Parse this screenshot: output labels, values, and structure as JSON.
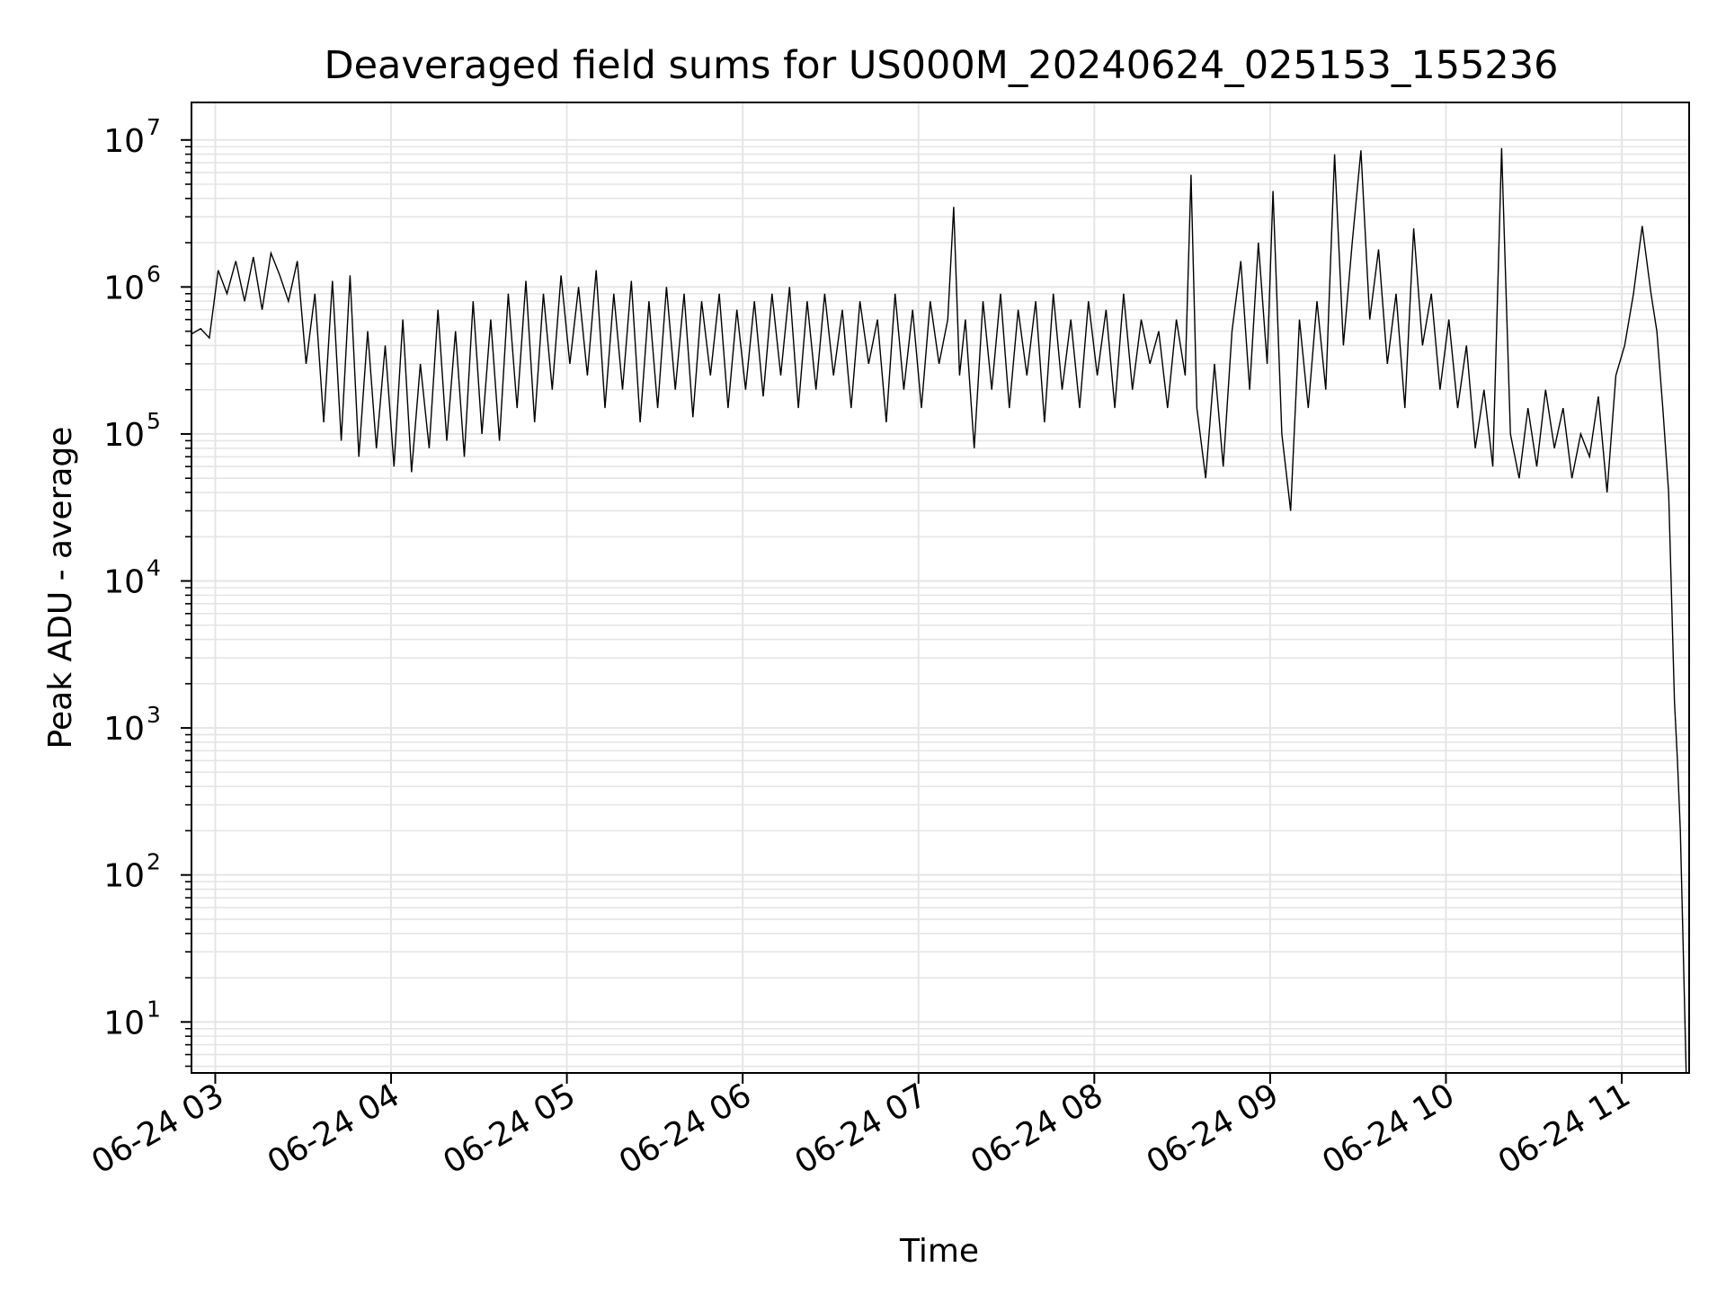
{
  "chart_data": {
    "type": "line",
    "title": "Deaveraged field sums for US000M_20240624_025153_155236",
    "xlabel": "Time",
    "ylabel": "Peak ADU - average",
    "yscale": "log",
    "xlim": [
      "06-24 02:51:53",
      "06-24 11:23:00"
    ],
    "ylim": [
      4.5,
      18000000
    ],
    "grid": true,
    "line_color": "#000000",
    "grid_color": "#e5e5e5",
    "x_ticks": [
      {
        "value": "06-24 03:00",
        "label": "06-24 03"
      },
      {
        "value": "06-24 04:00",
        "label": "06-24 04"
      },
      {
        "value": "06-24 05:00",
        "label": "06-24 05"
      },
      {
        "value": "06-24 06:00",
        "label": "06-24 06"
      },
      {
        "value": "06-24 07:00",
        "label": "06-24 07"
      },
      {
        "value": "06-24 08:00",
        "label": "06-24 08"
      },
      {
        "value": "06-24 09:00",
        "label": "06-24 09"
      },
      {
        "value": "06-24 10:00",
        "label": "06-24 10"
      },
      {
        "value": "06-24 11:00",
        "label": "06-24 11"
      }
    ],
    "y_ticks": [
      {
        "value": 10,
        "base": "10",
        "exp": "1"
      },
      {
        "value": 100,
        "base": "10",
        "exp": "2"
      },
      {
        "value": 1000,
        "base": "10",
        "exp": "3"
      },
      {
        "value": 10000,
        "base": "10",
        "exp": "4"
      },
      {
        "value": 100000,
        "base": "10",
        "exp": "5"
      },
      {
        "value": 1000000,
        "base": "10",
        "exp": "6"
      },
      {
        "value": 10000000,
        "base": "10",
        "exp": "7"
      }
    ],
    "series": [
      {
        "x": [
          "06-24 02:52",
          "06-24 02:55",
          "06-24 02:58",
          "06-24 03:01",
          "06-24 03:04",
          "06-24 03:07",
          "06-24 03:10",
          "06-24 03:13",
          "06-24 03:16",
          "06-24 03:19",
          "06-24 03:22",
          "06-24 03:25",
          "06-24 03:28",
          "06-24 03:31",
          "06-24 03:34",
          "06-24 03:37",
          "06-24 03:40",
          "06-24 03:43",
          "06-24 03:46",
          "06-24 03:49",
          "06-24 03:52",
          "06-24 03:55",
          "06-24 03:58",
          "06-24 04:01",
          "06-24 04:04",
          "06-24 04:07",
          "06-24 04:10",
          "06-24 04:13",
          "06-24 04:16",
          "06-24 04:19",
          "06-24 04:22",
          "06-24 04:25",
          "06-24 04:28",
          "06-24 04:31",
          "06-24 04:34",
          "06-24 04:37",
          "06-24 04:40",
          "06-24 04:43",
          "06-24 04:46",
          "06-24 04:49",
          "06-24 04:52",
          "06-24 04:55",
          "06-24 04:58",
          "06-24 05:01",
          "06-24 05:04",
          "06-24 05:07",
          "06-24 05:10",
          "06-24 05:13",
          "06-24 05:16",
          "06-24 05:19",
          "06-24 05:22",
          "06-24 05:25",
          "06-24 05:28",
          "06-24 05:31",
          "06-24 05:34",
          "06-24 05:37",
          "06-24 05:40",
          "06-24 05:43",
          "06-24 05:46",
          "06-24 05:49",
          "06-24 05:52",
          "06-24 05:55",
          "06-24 05:58",
          "06-24 06:01",
          "06-24 06:04",
          "06-24 06:07",
          "06-24 06:10",
          "06-24 06:13",
          "06-24 06:16",
          "06-24 06:19",
          "06-24 06:22",
          "06-24 06:25",
          "06-24 06:28",
          "06-24 06:31",
          "06-24 06:34",
          "06-24 06:37",
          "06-24 06:40",
          "06-24 06:43",
          "06-24 06:46",
          "06-24 06:49",
          "06-24 06:52",
          "06-24 06:55",
          "06-24 06:58",
          "06-24 07:01",
          "06-24 07:04",
          "06-24 07:07",
          "06-24 07:10",
          "06-24 07:12",
          "06-24 07:14",
          "06-24 07:16",
          "06-24 07:19",
          "06-24 07:22",
          "06-24 07:25",
          "06-24 07:28",
          "06-24 07:31",
          "06-24 07:34",
          "06-24 07:37",
          "06-24 07:40",
          "06-24 07:43",
          "06-24 07:46",
          "06-24 07:49",
          "06-24 07:52",
          "06-24 07:55",
          "06-24 07:58",
          "06-24 08:01",
          "06-24 08:04",
          "06-24 08:07",
          "06-24 08:10",
          "06-24 08:13",
          "06-24 08:16",
          "06-24 08:19",
          "06-24 08:22",
          "06-24 08:25",
          "06-24 08:28",
          "06-24 08:31",
          "06-24 08:33",
          "06-24 08:35",
          "06-24 08:38",
          "06-24 08:41",
          "06-24 08:44",
          "06-24 08:47",
          "06-24 08:50",
          "06-24 08:53",
          "06-24 08:56",
          "06-24 08:59",
          "06-24 09:01",
          "06-24 09:04",
          "06-24 09:07",
          "06-24 09:10",
          "06-24 09:13",
          "06-24 09:16",
          "06-24 09:19",
          "06-24 09:22",
          "06-24 09:25",
          "06-24 09:28",
          "06-24 09:31",
          "06-24 09:34",
          "06-24 09:37",
          "06-24 09:40",
          "06-24 09:43",
          "06-24 09:46",
          "06-24 09:49",
          "06-24 09:52",
          "06-24 09:55",
          "06-24 09:58",
          "06-24 10:01",
          "06-24 10:04",
          "06-24 10:07",
          "06-24 10:10",
          "06-24 10:13",
          "06-24 10:16",
          "06-24 10:19",
          "06-24 10:22",
          "06-24 10:25",
          "06-24 10:28",
          "06-24 10:31",
          "06-24 10:34",
          "06-24 10:37",
          "06-24 10:40",
          "06-24 10:43",
          "06-24 10:46",
          "06-24 10:49",
          "06-24 10:52",
          "06-24 10:55",
          "06-24 10:58",
          "06-24 11:01",
          "06-24 11:04",
          "06-24 11:07",
          "06-24 11:10",
          "06-24 11:12",
          "06-24 11:14",
          "06-24 11:16",
          "06-24 11:18",
          "06-24 11:19",
          "06-24 11:20",
          "06-24 11:21",
          "06-24 11:22"
        ],
        "values": [
          480000,
          520000,
          450000,
          1300000,
          900000,
          1500000,
          800000,
          1600000,
          700000,
          1700000,
          1200000,
          800000,
          1500000,
          300000,
          900000,
          120000,
          1100000,
          90000,
          1200000,
          70000,
          500000,
          80000,
          400000,
          60000,
          600000,
          55000,
          300000,
          80000,
          700000,
          90000,
          500000,
          70000,
          800000,
          100000,
          600000,
          90000,
          900000,
          150000,
          1100000,
          120000,
          900000,
          200000,
          1200000,
          300000,
          1000000,
          250000,
          1300000,
          150000,
          900000,
          200000,
          1100000,
          120000,
          800000,
          150000,
          1000000,
          200000,
          900000,
          130000,
          800000,
          250000,
          900000,
          150000,
          700000,
          200000,
          800000,
          180000,
          900000,
          250000,
          1000000,
          150000,
          800000,
          200000,
          900000,
          250000,
          700000,
          150000,
          800000,
          300000,
          600000,
          120000,
          900000,
          200000,
          700000,
          150000,
          800000,
          300000,
          600000,
          3500000,
          250000,
          600000,
          80000,
          800000,
          200000,
          900000,
          150000,
          700000,
          250000,
          800000,
          120000,
          900000,
          200000,
          600000,
          150000,
          800000,
          250000,
          700000,
          150000,
          900000,
          200000,
          600000,
          300000,
          500000,
          150000,
          600000,
          250000,
          5800000,
          150000,
          50000,
          300000,
          60000,
          500000,
          1500000,
          200000,
          2000000,
          300000,
          4500000,
          100000,
          30000,
          600000,
          150000,
          800000,
          200000,
          8000000,
          400000,
          2000000,
          8500000,
          600000,
          1800000,
          300000,
          900000,
          150000,
          2500000,
          400000,
          900000,
          200000,
          600000,
          150000,
          400000,
          80000,
          200000,
          60000,
          8800000,
          100000,
          50000,
          150000,
          60000,
          200000,
          80000,
          150000,
          50000,
          100000,
          70000,
          180000,
          40000,
          250000,
          400000,
          900000,
          2600000,
          900000,
          500000,
          150000,
          40000,
          1500,
          600,
          200,
          30,
          4.5
        ]
      }
    ]
  }
}
